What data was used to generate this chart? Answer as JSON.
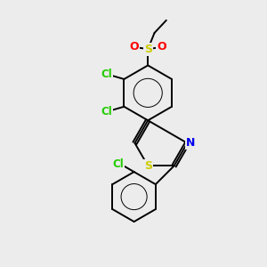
{
  "bg_color": "#ececec",
  "bond_color": "#000000",
  "bond_lw": 1.4,
  "atom_colors": {
    "Cl": "#22cc00",
    "S": "#cccc00",
    "O": "#ff0000",
    "N": "#0000ee"
  },
  "font_size": 8.5
}
